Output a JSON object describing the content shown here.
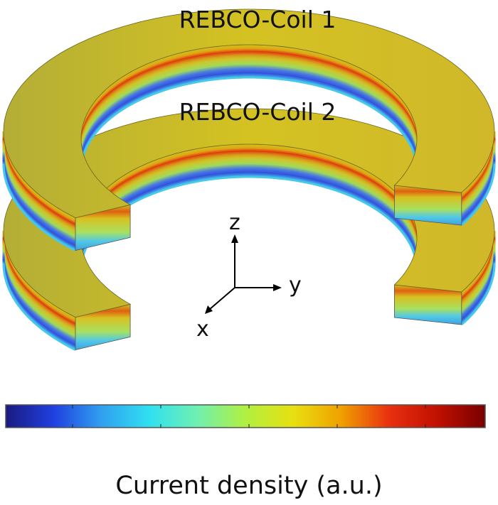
{
  "labels": {
    "coil1": "REBCO-Coil 1",
    "coil2": "REBCO-Coil 2"
  },
  "axes": {
    "x": "x",
    "y": "y",
    "z": "z"
  },
  "colorbar": {
    "caption": "Current density (a.u.)",
    "colormap": [
      "#1a1a80",
      "#2040e0",
      "#30a0f0",
      "#30e0f0",
      "#70f0b0",
      "#b0f040",
      "#e8e010",
      "#f0a000",
      "#e83010",
      "#c01000",
      "#780000"
    ],
    "tick_count": 5
  },
  "colors": {
    "top_face_light": "#d4c222",
    "top_face_dark": "#b4ae36"
  }
}
